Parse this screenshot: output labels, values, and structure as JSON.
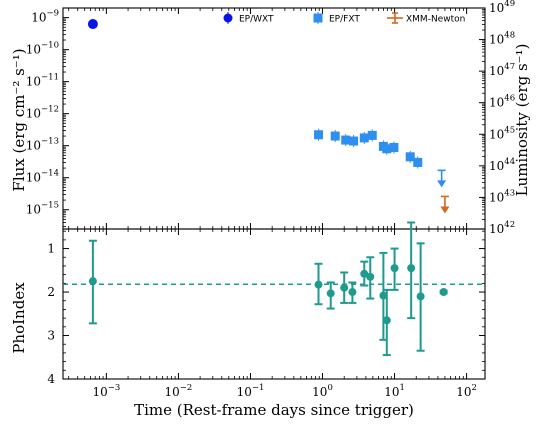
{
  "chart_data": [
    {
      "type": "scatter",
      "panel": "top",
      "ylabel_left": "Flux (erg cm⁻² s⁻¹)",
      "ylabel_right": "Luminosity (erg s⁻¹)",
      "xscale": "log",
      "yscale": "log",
      "xlim": [
        0.00025,
        180
      ],
      "ylim": [
        2.5e-16,
        2e-09
      ],
      "ylim_right": [
        1e+42,
        1e+49
      ],
      "grid": false,
      "legend_position": "top-right",
      "left_ticks": [
        {
          "value": 1e-09,
          "base": "10",
          "exp": "−9"
        },
        {
          "value": 1e-10,
          "base": "10",
          "exp": "−10"
        },
        {
          "value": 1e-11,
          "base": "10",
          "exp": "−11"
        },
        {
          "value": 1e-12,
          "base": "10",
          "exp": "−12"
        },
        {
          "value": 1e-13,
          "base": "10",
          "exp": "−13"
        },
        {
          "value": 1e-14,
          "base": "10",
          "exp": "−14"
        },
        {
          "value": 1e-15,
          "base": "10",
          "exp": "−15"
        }
      ],
      "right_ticks": [
        {
          "value": 1e+49,
          "base": "10",
          "exp": "49"
        },
        {
          "value": 1e+48,
          "base": "10",
          "exp": "48"
        },
        {
          "value": 1e+47,
          "base": "10",
          "exp": "47"
        },
        {
          "value": 1e+46,
          "base": "10",
          "exp": "46"
        },
        {
          "value": 1e+45,
          "base": "10",
          "exp": "45"
        },
        {
          "value": 1e+44,
          "base": "10",
          "exp": "44"
        },
        {
          "value": 1e+43,
          "base": "10",
          "exp": "43"
        },
        {
          "value": 1e+42,
          "base": "10",
          "exp": "42"
        }
      ],
      "series": [
        {
          "name": "EP/WXT",
          "color": "#0a14e6",
          "marker": "circle",
          "points": [
            {
              "x": 0.00065,
              "y": 6.3e-10
            }
          ]
        },
        {
          "name": "EP/FXT",
          "color": "#2f8ff0",
          "marker": "square",
          "points": [
            {
              "x": 0.88,
              "y": 2.2e-13
            },
            {
              "x": 1.5,
              "y": 2e-13
            },
            {
              "x": 2.1,
              "y": 1.5e-13
            },
            {
              "x": 2.7,
              "y": 1.4e-13
            },
            {
              "x": 3.8,
              "y": 1.75e-13
            },
            {
              "x": 4.9,
              "y": 2.1e-13
            },
            {
              "x": 7.0,
              "y": 9.5e-14
            },
            {
              "x": 7.8,
              "y": 8e-14
            },
            {
              "x": 9.8,
              "y": 8.8e-14
            },
            {
              "x": 16.5,
              "y": 4.5e-14
            },
            {
              "x": 21.0,
              "y": 3e-14
            }
          ],
          "upper_limits": [
            {
              "x": 45,
              "y": 1.7e-14
            }
          ]
        },
        {
          "name": "XMM-Newton",
          "color": "#d2691e",
          "marker": "errorbar",
          "points": [],
          "upper_limits": [
            {
              "x": 50,
              "y": 2.6e-15
            }
          ]
        }
      ]
    },
    {
      "type": "scatter",
      "panel": "bottom",
      "xlabel": "Time (Rest-frame days since trigger)",
      "ylabel": "PhoIndex",
      "xscale": "log",
      "xlim": [
        0.00025,
        180
      ],
      "ylim_inverted": [
        0.55,
        4.0
      ],
      "grid": false,
      "x_ticks": [
        {
          "value": 0.001,
          "base": "10",
          "exp": "−3"
        },
        {
          "value": 0.01,
          "base": "10",
          "exp": "−2"
        },
        {
          "value": 0.1,
          "base": "10",
          "exp": "−1"
        },
        {
          "value": 1,
          "base": "10",
          "exp": "0"
        },
        {
          "value": 10,
          "base": "10",
          "exp": "1"
        },
        {
          "value": 100,
          "base": "10",
          "exp": "2"
        }
      ],
      "y_ticks": [
        {
          "value": 1,
          "label": "1"
        },
        {
          "value": 2,
          "label": "2"
        },
        {
          "value": 3,
          "label": "3"
        },
        {
          "value": 4,
          "label": "4"
        }
      ],
      "reference_line": {
        "y": 1.82,
        "style": "dashed"
      },
      "color": "#1f9a8f",
      "points": [
        {
          "x": 0.00065,
          "y": 1.75,
          "lo": 0.82,
          "hi": 2.72
        },
        {
          "x": 0.88,
          "y": 1.83,
          "lo": 1.35,
          "hi": 2.28
        },
        {
          "x": 1.3,
          "y": 2.03,
          "lo": 1.78,
          "hi": 2.38
        },
        {
          "x": 2.0,
          "y": 1.9,
          "lo": 1.55,
          "hi": 2.25
        },
        {
          "x": 2.6,
          "y": 2.0,
          "lo": 1.78,
          "hi": 2.25
        },
        {
          "x": 3.8,
          "y": 1.58,
          "lo": 1.3,
          "hi": 1.85
        },
        {
          "x": 4.6,
          "y": 1.65,
          "lo": 1.2,
          "hi": 2.15
        },
        {
          "x": 7.0,
          "y": 2.08,
          "lo": 1.1,
          "hi": 3.1
        },
        {
          "x": 7.8,
          "y": 2.65,
          "lo": 1.95,
          "hi": 3.45
        },
        {
          "x": 10.0,
          "y": 1.45,
          "lo": 1.0,
          "hi": 1.95
        },
        {
          "x": 17.0,
          "y": 1.45,
          "lo": 0.4,
          "hi": 2.6
        },
        {
          "x": 23.0,
          "y": 2.1,
          "lo": 0.88,
          "hi": 3.35
        },
        {
          "x": 48.0,
          "y": 2.0,
          "lo": 1.97,
          "hi": 2.03
        }
      ]
    }
  ]
}
